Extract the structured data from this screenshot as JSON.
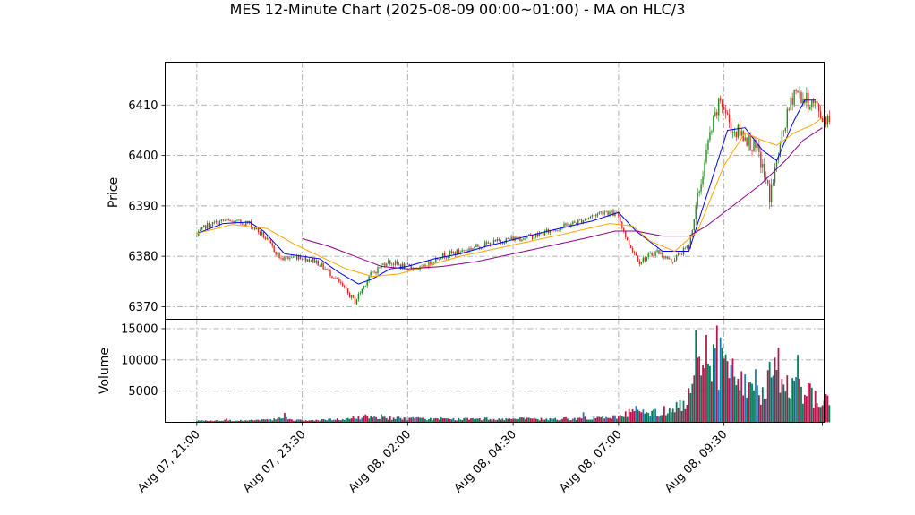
{
  "chart_data": {
    "type": "candlestick",
    "title": "MES 12-Minute Chart (2025-08-09 00:00~01:00) - MA on HLC/3",
    "colors": {
      "up": "#1a8f1a",
      "down": "#d62728",
      "ma_fast": "#0000ee",
      "ma_mid": "#ffa500",
      "ma_slow": "#8b008b",
      "vol_up": "#007a5a",
      "vol_down": "#b0174a",
      "vol_alt": "#1f77b4"
    },
    "price_panel": {
      "ylabel": "Price",
      "ylim": [
        6367.5,
        6418.5
      ],
      "yticks": [
        6370,
        6380,
        6390,
        6400,
        6410
      ]
    },
    "volume_panel": {
      "ylabel": "Volume",
      "ylim": [
        0,
        16500
      ],
      "yticks": [
        5000,
        10000,
        15000
      ],
      "ytick_labels": [
        "5000",
        "10000",
        "15000"
      ]
    },
    "xlim": [
      -18,
      357
    ],
    "xticks": [
      0,
      60,
      120,
      180,
      240,
      300
    ],
    "xtick_labels": [
      "Aug 07, 21:00",
      "Aug 07, 23:30",
      "Aug 08, 02:00",
      "Aug 08, 04:30",
      "Aug 08, 07:00",
      "Aug 08, 09:30"
    ],
    "bar_count": 361,
    "price_anchors": [
      [
        0,
        6384
      ],
      [
        5,
        6386
      ],
      [
        15,
        6387
      ],
      [
        30,
        6386.5
      ],
      [
        38,
        6384
      ],
      [
        48,
        6379.5
      ],
      [
        58,
        6380
      ],
      [
        68,
        6379
      ],
      [
        78,
        6376
      ],
      [
        90,
        6371
      ],
      [
        98,
        6376
      ],
      [
        108,
        6379
      ],
      [
        118,
        6378
      ],
      [
        128,
        6377.5
      ],
      [
        138,
        6380
      ],
      [
        150,
        6381
      ],
      [
        160,
        6382
      ],
      [
        172,
        6383
      ],
      [
        180,
        6383.5
      ],
      [
        192,
        6384
      ],
      [
        205,
        6385.5
      ],
      [
        218,
        6387
      ],
      [
        232,
        6389
      ],
      [
        240,
        6388
      ],
      [
        245,
        6383
      ],
      [
        252,
        6379
      ],
      [
        262,
        6381
      ],
      [
        270,
        6379
      ],
      [
        280,
        6382
      ],
      [
        286,
        6393
      ],
      [
        292,
        6404
      ],
      [
        298,
        6411
      ],
      [
        305,
        6405
      ],
      [
        312,
        6404
      ],
      [
        320,
        6400
      ],
      [
        326,
        6392
      ],
      [
        334,
        6405
      ],
      [
        340,
        6413
      ],
      [
        346,
        6411
      ],
      [
        352,
        6410
      ],
      [
        356,
        6407.5
      ]
    ],
    "ma_fast": {
      "start": 0,
      "anchors": [
        [
          0,
          6384.5
        ],
        [
          15,
          6386.5
        ],
        [
          30,
          6386.8
        ],
        [
          38,
          6385
        ],
        [
          50,
          6380.5
        ],
        [
          60,
          6380
        ],
        [
          70,
          6379.5
        ],
        [
          80,
          6377
        ],
        [
          92,
          6374.5
        ],
        [
          100,
          6375.5
        ],
        [
          110,
          6377.5
        ],
        [
          120,
          6378
        ],
        [
          135,
          6379.5
        ],
        [
          150,
          6380.5
        ],
        [
          165,
          6382
        ],
        [
          180,
          6383.3
        ],
        [
          200,
          6385
        ],
        [
          225,
          6387
        ],
        [
          240,
          6388.7
        ],
        [
          250,
          6385
        ],
        [
          265,
          6381
        ],
        [
          280,
          6381
        ],
        [
          292,
          6394
        ],
        [
          302,
          6405
        ],
        [
          312,
          6405.5
        ],
        [
          322,
          6401
        ],
        [
          330,
          6399
        ],
        [
          340,
          6407
        ],
        [
          346,
          6411
        ],
        [
          352,
          6411
        ]
      ]
    },
    "ma_mid": {
      "start": 0,
      "anchors": [
        [
          0,
          6384.5
        ],
        [
          20,
          6386.3
        ],
        [
          40,
          6385.5
        ],
        [
          55,
          6382.5
        ],
        [
          70,
          6380
        ],
        [
          85,
          6377.5
        ],
        [
          100,
          6376
        ],
        [
          115,
          6376.5
        ],
        [
          130,
          6378
        ],
        [
          150,
          6380
        ],
        [
          170,
          6381.5
        ],
        [
          190,
          6383
        ],
        [
          210,
          6384.5
        ],
        [
          235,
          6386.5
        ],
        [
          248,
          6386
        ],
        [
          258,
          6383
        ],
        [
          272,
          6381
        ],
        [
          285,
          6385
        ],
        [
          300,
          6398
        ],
        [
          312,
          6404.5
        ],
        [
          322,
          6403
        ],
        [
          330,
          6402
        ],
        [
          340,
          6404.5
        ],
        [
          350,
          6406
        ],
        [
          356,
          6407.5
        ]
      ]
    },
    "ma_slow": {
      "start": 60,
      "anchors": [
        [
          60,
          6383.5
        ],
        [
          75,
          6382
        ],
        [
          90,
          6380
        ],
        [
          105,
          6378
        ],
        [
          120,
          6377.5
        ],
        [
          140,
          6378
        ],
        [
          160,
          6379
        ],
        [
          180,
          6380.5
        ],
        [
          200,
          6382
        ],
        [
          220,
          6383.5
        ],
        [
          238,
          6385
        ],
        [
          250,
          6385
        ],
        [
          265,
          6384
        ],
        [
          280,
          6384
        ],
        [
          290,
          6386
        ],
        [
          305,
          6390
        ],
        [
          320,
          6394
        ],
        [
          335,
          6399
        ],
        [
          345,
          6403
        ],
        [
          356,
          6405.5
        ]
      ]
    },
    "volume_anchors": [
      [
        0,
        250
      ],
      [
        40,
        350
      ],
      [
        50,
        700
      ],
      [
        60,
        250
      ],
      [
        85,
        500
      ],
      [
        95,
        900
      ],
      [
        115,
        650
      ],
      [
        140,
        500
      ],
      [
        180,
        550
      ],
      [
        200,
        500
      ],
      [
        225,
        650
      ],
      [
        240,
        900
      ],
      [
        250,
        2000
      ],
      [
        262,
        1500
      ],
      [
        272,
        2500
      ],
      [
        280,
        4000
      ],
      [
        288,
        10000
      ],
      [
        300,
        9000
      ],
      [
        310,
        6000
      ],
      [
        322,
        5000
      ],
      [
        330,
        8500
      ],
      [
        340,
        6500
      ],
      [
        350,
        4200
      ],
      [
        356,
        3500
      ]
    ],
    "volume_spikes": [
      [
        17,
        600
      ],
      [
        50,
        1500
      ],
      [
        105,
        1300
      ],
      [
        139,
        800
      ],
      [
        220,
        1600
      ],
      [
        276,
        1800
      ],
      [
        284,
        14800
      ],
      [
        286,
        10500
      ],
      [
        288,
        9200
      ],
      [
        290,
        14000
      ],
      [
        292,
        9000
      ],
      [
        294,
        12500
      ],
      [
        296,
        15500
      ],
      [
        298,
        13600
      ],
      [
        300,
        10200
      ],
      [
        302,
        9800
      ],
      [
        304,
        9200
      ],
      [
        318,
        8500
      ],
      [
        326,
        9700
      ],
      [
        336,
        7500
      ],
      [
        342,
        10800
      ],
      [
        352,
        5100
      ]
    ]
  }
}
